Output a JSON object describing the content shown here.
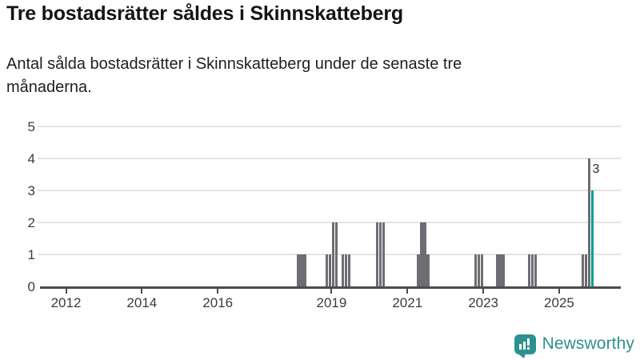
{
  "header": {
    "title": "Tre bostadsrätter såldes i Skinnskatteberg",
    "subtitle_line1": "Antal sålda bostadsrätter i Skinnskatteberg under de senaste tre",
    "subtitle_line2": "månaderna."
  },
  "footer": {
    "brand": "Newsworthy",
    "logo_icon": "bar-chart-speech-bubble"
  },
  "colors": {
    "bar_default": "#6d6d73",
    "bar_highlight": "#009e97",
    "logo_teal": "#2e918f",
    "gridline": "#e4e4e4",
    "axis": "#4c4c4c",
    "axis_text": "#3b3b3b",
    "title_text": "#141414"
  },
  "chart_data": {
    "type": "bar",
    "title": "Tre bostadsrätter såldes i Skinnskatteberg",
    "subtitle": "Antal sålda bostadsrätter i Skinnskatteberg under de senaste tre månaderna.",
    "xlabel": "",
    "ylabel": "",
    "x_axis": {
      "tick_years": [
        2012,
        2014,
        2016,
        2019,
        2021,
        2023,
        2025
      ],
      "range_start_year": 2011,
      "range_end_year": 2026
    },
    "y_axis": {
      "ticks": [
        0,
        1,
        2,
        3,
        4,
        5
      ],
      "ylim": [
        0,
        5
      ],
      "grid": true
    },
    "legend": "none",
    "annotation": {
      "text": "3",
      "attached_to": "2025-11"
    },
    "series": [
      {
        "month": "2018-02",
        "value": 1
      },
      {
        "month": "2018-03",
        "value": 1
      },
      {
        "month": "2018-04",
        "value": 1
      },
      {
        "month": "2018-11",
        "value": 1
      },
      {
        "month": "2018-12",
        "value": 1
      },
      {
        "month": "2019-01",
        "value": 2
      },
      {
        "month": "2019-02",
        "value": 2
      },
      {
        "month": "2019-04",
        "value": 1
      },
      {
        "month": "2019-05",
        "value": 1
      },
      {
        "month": "2019-06",
        "value": 1
      },
      {
        "month": "2020-03",
        "value": 2
      },
      {
        "month": "2020-04",
        "value": 2
      },
      {
        "month": "2020-05",
        "value": 2
      },
      {
        "month": "2021-04",
        "value": 1
      },
      {
        "month": "2021-05",
        "value": 2
      },
      {
        "month": "2021-06",
        "value": 2
      },
      {
        "month": "2021-07",
        "value": 1
      },
      {
        "month": "2022-10",
        "value": 1
      },
      {
        "month": "2022-11",
        "value": 1
      },
      {
        "month": "2022-12",
        "value": 1
      },
      {
        "month": "2023-05",
        "value": 1
      },
      {
        "month": "2023-06",
        "value": 1
      },
      {
        "month": "2023-07",
        "value": 1
      },
      {
        "month": "2024-03",
        "value": 1
      },
      {
        "month": "2024-04",
        "value": 1
      },
      {
        "month": "2024-05",
        "value": 1
      },
      {
        "month": "2025-08",
        "value": 1
      },
      {
        "month": "2025-09",
        "value": 1
      },
      {
        "month": "2025-10",
        "value": 4
      },
      {
        "month": "2025-11",
        "value": 3,
        "highlight": true
      }
    ]
  }
}
